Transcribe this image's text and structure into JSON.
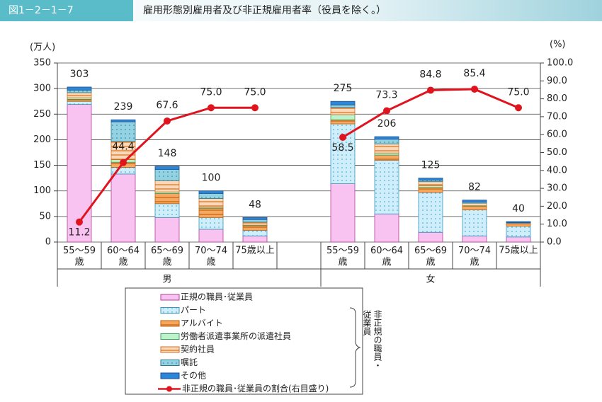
{
  "header": {
    "figure_number": "図1－2－1－7",
    "title": "雇用形態別雇用者及び非正規雇用者率（役員を除く。）"
  },
  "chart_data": {
    "type": "bar",
    "y_unit": "(万人)",
    "y2_unit": "(%)",
    "categories": [
      "55～59歳",
      "60～64歳",
      "65～69歳",
      "70～74歳",
      "75歳以上",
      "55～59歳",
      "60～64歳",
      "65～69歳",
      "70～74歳",
      "75歳以上"
    ],
    "group_labels": [
      "男",
      "女"
    ],
    "stacked": true,
    "grid": true,
    "ylim": [
      0,
      350
    ],
    "yticks": [
      0,
      50,
      100,
      150,
      200,
      250,
      300,
      350
    ],
    "y2lim": [
      0,
      100
    ],
    "y2ticks": [
      {
        "value": 0,
        "label": "0.0"
      },
      {
        "value": 10,
        "label": "10.0"
      },
      {
        "value": 20,
        "label": "20.0"
      },
      {
        "value": 30,
        "label": "30.0"
      },
      {
        "value": 40,
        "label": "40.0"
      },
      {
        "value": 50,
        "label": "50.0"
      },
      {
        "value": 60,
        "label": "60.0"
      },
      {
        "value": 70,
        "label": "70.0"
      },
      {
        "value": 80,
        "label": "80.0"
      },
      {
        "value": 90,
        "label": "90.0"
      },
      {
        "value": 100,
        "label": "100.0"
      }
    ],
    "series": [
      {
        "name": "正規の職員･従業員",
        "color": "#f9c3f1",
        "edge": "#b0409c",
        "values": [
          269,
          133,
          48,
          25,
          12,
          114,
          55,
          19,
          12,
          10
        ]
      },
      {
        "name": "パート",
        "color": "#cdeefa",
        "edge": "#3a98c0",
        "pattern": "dots",
        "values": [
          6,
          13,
          27,
          23,
          11,
          117,
          105,
          78,
          51,
          21
        ]
      },
      {
        "name": "アルバイト",
        "color": "#f7a860",
        "edge": "#c06010",
        "pattern": "stripes",
        "values": [
          4,
          10,
          20,
          18,
          9,
          8,
          10,
          10,
          7,
          4
        ]
      },
      {
        "name": "労働者派遣事業所の派遣社員",
        "color": "#bdf2cc",
        "edge": "#40a060",
        "values": [
          3,
          5,
          3,
          2,
          1,
          10,
          4,
          3,
          1,
          0
        ]
      },
      {
        "name": "契約社員",
        "color": "#fdd8b8",
        "edge": "#d07020",
        "pattern": "stripes",
        "values": [
          10,
          36,
          22,
          17,
          6,
          14,
          18,
          8,
          5,
          2
        ]
      },
      {
        "name": "嘱託",
        "color": "#93d2e2",
        "edge": "#2a7890",
        "pattern": "dots",
        "values": [
          5,
          38,
          22,
          10,
          5,
          5,
          9,
          3,
          2,
          1
        ]
      },
      {
        "name": "その他",
        "color": "#2b86d8",
        "edge": "#1a4f90",
        "values": [
          6,
          4,
          6,
          5,
          4,
          7,
          5,
          4,
          4,
          2
        ]
      }
    ],
    "totals": [
      303,
      239,
      148,
      100,
      48,
      275,
      206,
      125,
      82,
      40
    ],
    "line": {
      "name": "非正規の職員･従業員の割合(右目盛り)",
      "color": "#e0141e",
      "axis": "y2",
      "values": [
        11.2,
        44.4,
        67.6,
        75.0,
        75.0,
        58.5,
        73.3,
        84.8,
        85.4,
        75.0
      ],
      "value_labels": [
        "11.2",
        "44.4",
        "67.6",
        "75.0",
        "75.0",
        "58.5",
        "73.3",
        "84.8",
        "85.4",
        "75.0"
      ]
    },
    "legend_note_lines": [
      "非正規の職員・",
      "従業員"
    ]
  }
}
